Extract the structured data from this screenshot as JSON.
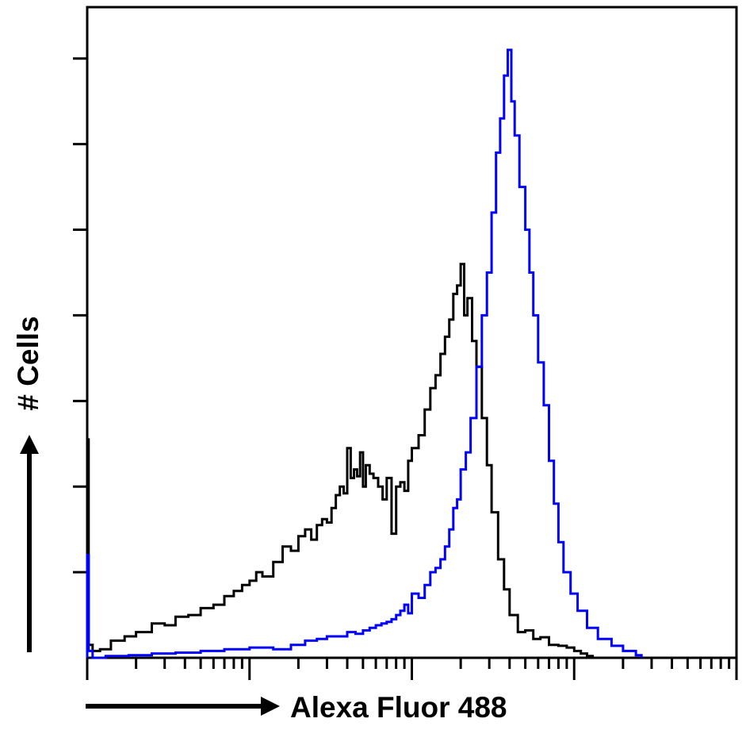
{
  "chart_data": {
    "type": "line",
    "title": "",
    "xlabel": "Alexa Fluor 488",
    "ylabel": "# Cells",
    "x_scale": "log",
    "xlim": [
      1,
      10000
    ],
    "ylim": [
      0,
      7.6
    ],
    "ytick_values": [
      1,
      2,
      3,
      4,
      5,
      6,
      7
    ],
    "x_decade_values": [
      1,
      10,
      100,
      1000,
      10000
    ],
    "grid": false,
    "legend": "none",
    "series": [
      {
        "color": "#000000",
        "x": [
          1.0,
          1.02,
          1.08,
          1.2,
          1.4,
          1.7,
          2.0,
          2.5,
          3.0,
          3.5,
          4.2,
          5.0,
          6.0,
          7.0,
          8.0,
          9.0,
          10.0,
          11.0,
          12.0,
          14.0,
          16.0,
          18.0,
          20.0,
          22.0,
          24.0,
          26.0,
          28.0,
          30.0,
          32.0,
          34.0,
          36.0,
          38.0,
          40.0,
          42.0,
          44.0,
          46.0,
          48.0,
          50.0,
          52.0,
          55.0,
          58.0,
          62.0,
          66.0,
          70.0,
          75.0,
          80.0,
          85.0,
          90.0,
          95.0,
          100.0,
          110.0,
          120.0,
          130.0,
          140.0,
          150.0,
          160.0,
          170.0,
          180.0,
          190.0,
          200.0,
          210.0,
          220.0,
          235.0,
          250.0,
          270.0,
          290.0,
          310.0,
          340.0,
          370.0,
          400.0,
          450.0,
          500.0,
          560.0,
          620.0,
          700.0,
          800.0,
          900.0,
          1000.0,
          1100.0,
          1200.0,
          1300.0
        ],
        "y": [
          2.55,
          0.15,
          0.08,
          0.1,
          0.2,
          0.25,
          0.3,
          0.4,
          0.38,
          0.48,
          0.5,
          0.58,
          0.62,
          0.72,
          0.78,
          0.85,
          0.9,
          1.0,
          0.95,
          1.12,
          1.3,
          1.25,
          1.42,
          1.5,
          1.38,
          1.55,
          1.62,
          1.58,
          1.75,
          1.9,
          2.0,
          1.92,
          2.45,
          2.1,
          2.2,
          2.12,
          2.4,
          2.0,
          2.25,
          2.15,
          2.1,
          2.0,
          1.85,
          2.1,
          1.45,
          2.0,
          2.05,
          1.95,
          2.3,
          2.45,
          2.6,
          2.9,
          3.15,
          3.3,
          3.55,
          3.75,
          3.95,
          4.25,
          4.35,
          4.6,
          4.0,
          4.2,
          3.7,
          3.4,
          2.8,
          2.25,
          1.7,
          1.15,
          0.8,
          0.5,
          0.3,
          0.32,
          0.22,
          0.24,
          0.15,
          0.14,
          0.12,
          0.08,
          0.05,
          0.02,
          0.0
        ]
      },
      {
        "color": "#0000ff",
        "x": [
          1.0,
          1.02,
          1.08,
          1.3,
          1.8,
          2.5,
          3.5,
          5.0,
          7.0,
          10.0,
          14.0,
          18.0,
          22.0,
          26.0,
          30.0,
          35.0,
          40.0,
          45.0,
          50.0,
          55.0,
          60.0,
          65.0,
          70.0,
          75.0,
          80.0,
          85.0,
          90.0,
          95.0,
          100.0,
          110.0,
          120.0,
          130.0,
          140.0,
          150.0,
          160.0,
          170.0,
          180.0,
          190.0,
          200.0,
          215.0,
          230.0,
          250.0,
          270.0,
          290.0,
          310.0,
          330.0,
          350.0,
          370.0,
          390.0,
          410.0,
          430.0,
          460.0,
          500.0,
          530.0,
          560.0,
          600.0,
          650.0,
          700.0,
          750.0,
          800.0,
          860.0,
          950.0,
          1050.0,
          1200.0,
          1400.0,
          1700.0,
          2000.0,
          2400.0,
          2600.0
        ],
        "y": [
          1.2,
          0.08,
          0.0,
          0.02,
          0.03,
          0.05,
          0.06,
          0.08,
          0.1,
          0.12,
          0.1,
          0.15,
          0.2,
          0.22,
          0.25,
          0.25,
          0.3,
          0.28,
          0.32,
          0.35,
          0.38,
          0.4,
          0.42,
          0.45,
          0.5,
          0.55,
          0.62,
          0.52,
          0.75,
          0.7,
          0.85,
          1.0,
          1.05,
          1.15,
          1.3,
          1.5,
          1.75,
          1.85,
          2.2,
          2.4,
          2.8,
          3.4,
          4.0,
          4.5,
          5.2,
          5.9,
          6.3,
          6.8,
          7.1,
          6.5,
          6.1,
          5.5,
          5.0,
          4.5,
          4.0,
          3.45,
          2.95,
          2.3,
          1.8,
          1.35,
          1.0,
          0.75,
          0.55,
          0.35,
          0.22,
          0.14,
          0.08,
          0.03,
          0.0
        ]
      }
    ]
  }
}
